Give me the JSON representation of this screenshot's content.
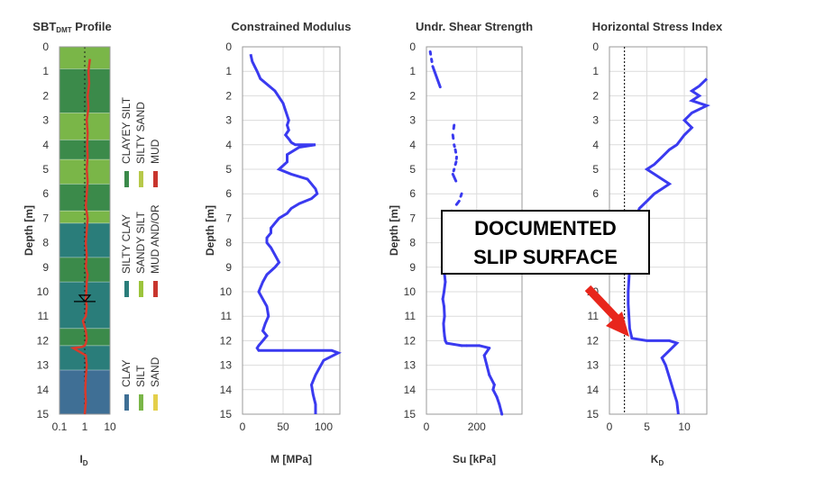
{
  "colors": {
    "curve": "#3a3af0",
    "ratio_line": "#d93a2b",
    "arrow": "#e8261c",
    "clay": "#3f6f95",
    "silty_clay": "#2a7d7a",
    "clayey_silt": "#3b8a4a",
    "silt": "#7ab648",
    "sandy_silt": "#9cc43c",
    "silty_sand": "#b7c94a",
    "sand": "#e4cf4a",
    "mud": "#c8352d"
  },
  "callout": {
    "line1": "DOCUMENTED",
    "line2": "SLIP SURFACE"
  },
  "chart_data": [
    {
      "type": "heatmap",
      "title_main": "SBT",
      "title_sub": "DMT",
      "title_tail": " Profile",
      "xlabel_main": "I",
      "xlabel_sub": "D",
      "ylabel": "Depth [m]",
      "xscale": "log",
      "xlim": [
        0.1,
        10
      ],
      "ylim": [
        0,
        15
      ],
      "xticks": [
        0.1,
        1,
        10
      ],
      "yticks": [
        0,
        1,
        2,
        3,
        4,
        5,
        6,
        7,
        8,
        9,
        10,
        11,
        12,
        13,
        14,
        15
      ],
      "layers": [
        {
          "top": 0.0,
          "bottom": 0.9,
          "cls": "silt"
        },
        {
          "top": 0.9,
          "bottom": 2.7,
          "cls": "clayey_silt"
        },
        {
          "top": 2.7,
          "bottom": 3.8,
          "cls": "silt"
        },
        {
          "top": 3.8,
          "bottom": 4.6,
          "cls": "clayey_silt"
        },
        {
          "top": 4.6,
          "bottom": 5.6,
          "cls": "silt"
        },
        {
          "top": 5.6,
          "bottom": 6.7,
          "cls": "clayey_silt"
        },
        {
          "top": 6.7,
          "bottom": 7.2,
          "cls": "silt"
        },
        {
          "top": 7.2,
          "bottom": 8.6,
          "cls": "silty_clay"
        },
        {
          "top": 8.6,
          "bottom": 9.6,
          "cls": "clayey_silt"
        },
        {
          "top": 9.6,
          "bottom": 11.5,
          "cls": "silty_clay"
        },
        {
          "top": 11.5,
          "bottom": 12.2,
          "cls": "clayey_silt"
        },
        {
          "top": 12.2,
          "bottom": 13.2,
          "cls": "silty_clay"
        },
        {
          "top": 13.2,
          "bottom": 15.0,
          "cls": "clay"
        }
      ],
      "series": [
        {
          "x": [
            1.6,
            1.4,
            1.5,
            1.3,
            1.4,
            1.2,
            1.3,
            1.25,
            1.3,
            1.2,
            1.3,
            1.2,
            1.1,
            1.3,
            1.2,
            1.1,
            1.2,
            1.1,
            1.3,
            1.2,
            1.15,
            1.1,
            1.2,
            1.1,
            0.85,
            1.1,
            1.2,
            1.1,
            1.0,
            0.8,
            0.35,
            1.1,
            1.2,
            1.1,
            1.05,
            1.1,
            1.0
          ],
          "y": [
            0.5,
            1.0,
            1.5,
            2.0,
            2.5,
            3.0,
            3.5,
            4.0,
            4.5,
            5.0,
            5.5,
            6.0,
            6.5,
            7.0,
            7.5,
            8.0,
            8.5,
            9.0,
            9.3,
            9.6,
            10.0,
            10.3,
            10.6,
            11.0,
            11.2,
            11.6,
            11.9,
            12.1,
            12.2,
            12.25,
            12.3,
            12.6,
            13.0,
            13.5,
            14.0,
            14.5,
            15.0
          ]
        }
      ],
      "legend": [
        {
          "labels": [
            "CLAYEY SILT",
            "SILTY SAND",
            "MUD"
          ],
          "colors": [
            "clayey_silt",
            "silty_sand",
            "mud"
          ]
        },
        {
          "labels": [
            "SILTY CLAY",
            "SANDY SILT",
            "MUD AND/OR"
          ],
          "colors": [
            "silty_clay",
            "sandy_silt",
            "mud"
          ]
        },
        {
          "labels": [
            "CLAY",
            "SILT",
            "SAND"
          ],
          "colors": [
            "clay",
            "silt",
            "sand"
          ]
        }
      ],
      "water_table_depth": 10.4
    },
    {
      "type": "line",
      "title": "Constrained Modulus",
      "xlabel": "M [MPa]",
      "ylabel": "Depth [m]",
      "xlim": [
        0,
        120
      ],
      "ylim": [
        0,
        15
      ],
      "xticks": [
        0,
        50,
        100
      ],
      "yticks": [
        0,
        1,
        2,
        3,
        4,
        5,
        6,
        7,
        8,
        9,
        10,
        11,
        12,
        13,
        14,
        15
      ],
      "series": [
        {
          "x": [
            10,
            12,
            15,
            18,
            22,
            40,
            50,
            55,
            57,
            55,
            57,
            53,
            58,
            60,
            65,
            90,
            70,
            55,
            55,
            45,
            60,
            80,
            85,
            90,
            92,
            85,
            70,
            60,
            55,
            50,
            45,
            40,
            35,
            35,
            30,
            30,
            35,
            40,
            45,
            40,
            30,
            25,
            20,
            25,
            30,
            32,
            28,
            25,
            30,
            25,
            20,
            18,
            20,
            30,
            60,
            110,
            118,
            100,
            95,
            90,
            85,
            87,
            90,
            90
          ],
          "y": [
            0.3,
            0.6,
            0.8,
            1.0,
            1.3,
            1.8,
            2.3,
            2.8,
            3.0,
            3.2,
            3.4,
            3.6,
            3.8,
            3.9,
            4.0,
            4.0,
            4.1,
            4.4,
            4.7,
            5.0,
            5.2,
            5.4,
            5.6,
            5.8,
            6.0,
            6.2,
            6.4,
            6.6,
            6.8,
            6.9,
            7.0,
            7.2,
            7.4,
            7.6,
            7.8,
            8.0,
            8.2,
            8.5,
            8.8,
            9.0,
            9.3,
            9.6,
            10.0,
            10.3,
            10.6,
            11.0,
            11.3,
            11.6,
            11.8,
            12.0,
            12.2,
            12.3,
            12.4,
            12.4,
            12.4,
            12.4,
            12.5,
            12.8,
            13.1,
            13.4,
            13.8,
            14.2,
            14.6,
            15.0
          ]
        }
      ]
    },
    {
      "type": "scatter",
      "title": "Undr. Shear Strength",
      "xlabel": "Su [kPa]",
      "ylabel": "Depth [m]",
      "xlim": [
        0,
        380
      ],
      "ylim": [
        0,
        15
      ],
      "xticks": [
        0,
        200
      ],
      "yticks": [
        0,
        1,
        2,
        3,
        4,
        5,
        6,
        7,
        8,
        9,
        10,
        11,
        12,
        13,
        14,
        15
      ],
      "series": [
        {
          "x": [
            15,
            20,
            25,
            110,
            105,
            110,
            115,
            120,
            118,
            110,
            105,
            140,
            130,
            100,
            95,
            90,
            80,
            75,
            70,
            72,
            75,
            70,
            65,
            70,
            72,
            68,
            70,
            72,
            75,
            80,
            140,
            160,
            210,
            250,
            230,
            240,
            250,
            270,
            265,
            280,
            290,
            300
          ],
          "y": [
            0.2,
            0.5,
            0.8,
            3.2,
            3.6,
            4.0,
            4.2,
            4.5,
            4.7,
            5.0,
            5.2,
            6.0,
            6.3,
            6.7,
            7.0,
            7.5,
            8.0,
            8.5,
            9.0,
            9.3,
            9.6,
            10.0,
            10.3,
            10.6,
            11.0,
            11.3,
            11.6,
            11.8,
            12.0,
            12.1,
            12.2,
            12.2,
            12.2,
            12.3,
            12.6,
            13.0,
            13.4,
            13.8,
            14.0,
            14.3,
            14.6,
            15.0
          ]
        }
      ]
    },
    {
      "type": "line",
      "title": "Horizontal Stress Index",
      "xlabel_main": "K",
      "xlabel_sub": "D",
      "ylabel": "Depth [m]",
      "xlim": [
        0,
        13
      ],
      "ylim": [
        0,
        15
      ],
      "xticks": [
        0,
        5,
        10
      ],
      "yticks": [
        0,
        1,
        2,
        3,
        4,
        5,
        6,
        7,
        8,
        9,
        10,
        11,
        12,
        13,
        14,
        15
      ],
      "reference_line": 2,
      "series": [
        {
          "x": [
            13,
            12,
            11,
            12,
            11,
            13,
            11,
            10,
            11,
            10,
            9,
            8,
            7,
            6,
            5,
            6,
            7,
            8,
            7,
            6,
            5,
            4,
            3.5,
            3,
            2.8,
            2.7,
            2.6,
            2.5,
            2.5,
            2.6,
            2.7,
            3,
            5,
            8,
            9,
            8,
            7,
            7.5,
            8,
            8.5,
            9,
            9.2
          ],
          "y": [
            1.3,
            1.6,
            1.8,
            2.0,
            2.2,
            2.4,
            2.7,
            3.0,
            3.3,
            3.6,
            4.0,
            4.2,
            4.5,
            4.8,
            5.0,
            5.2,
            5.4,
            5.6,
            5.8,
            6.0,
            6.3,
            6.6,
            7.0,
            7.5,
            8.0,
            9.0,
            9.5,
            10.0,
            10.5,
            11.0,
            11.5,
            11.9,
            12.0,
            12.0,
            12.1,
            12.4,
            12.7,
            13.0,
            13.5,
            14.0,
            14.5,
            15.0
          ]
        }
      ]
    }
  ]
}
